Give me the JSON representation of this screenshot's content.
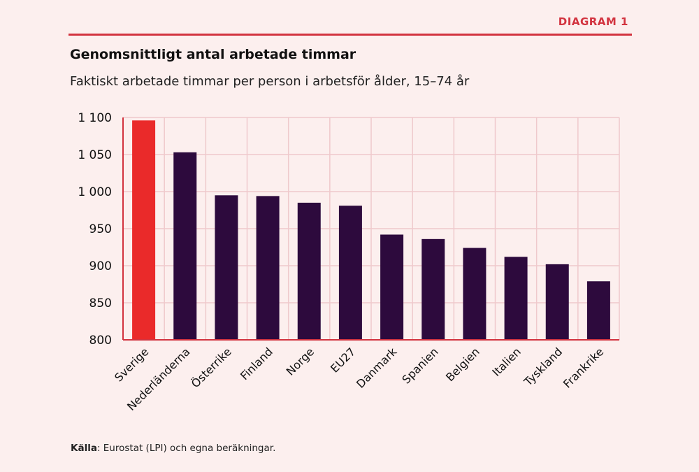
{
  "header": {
    "tag": "DIAGRAM 1",
    "title": "Genomsnittligt antal arbetade timmar",
    "subtitle": "Faktiskt arbetade timmar per person i arbetsför ålder, 15–74 år"
  },
  "source": {
    "label": "Källa",
    "text": ": Eurostat (LPI) och egna beräkningar."
  },
  "colors": {
    "highlight": "#ea2a2a",
    "bar": "#2d0a3d",
    "grid": "#efc9cc",
    "axis": "#d2333f",
    "accent": "#d2333f"
  },
  "chart_data": {
    "type": "bar",
    "title": "Genomsnittligt antal arbetade timmar",
    "subtitle": "Faktiskt arbetade timmar per person i arbetsför ålder, 15–74 år",
    "xlabel": "",
    "ylabel": "",
    "ylim": [
      800,
      1100
    ],
    "yticks": [
      800,
      850,
      900,
      950,
      1000,
      1050,
      1100
    ],
    "ytick_labels": [
      "800",
      "850",
      "900",
      "950",
      "1 000",
      "1 050",
      "1 100"
    ],
    "grid": true,
    "categories": [
      "Sverige",
      "Nederländerna",
      "Österrike",
      "Finland",
      "Norge",
      "EU27",
      "Danmark",
      "Spanien",
      "Belgien",
      "Italien",
      "Tyskland",
      "Frankrike"
    ],
    "values": [
      1096,
      1053,
      995,
      994,
      985,
      981,
      942,
      936,
      924,
      912,
      902,
      879
    ],
    "highlight_index": 0
  }
}
